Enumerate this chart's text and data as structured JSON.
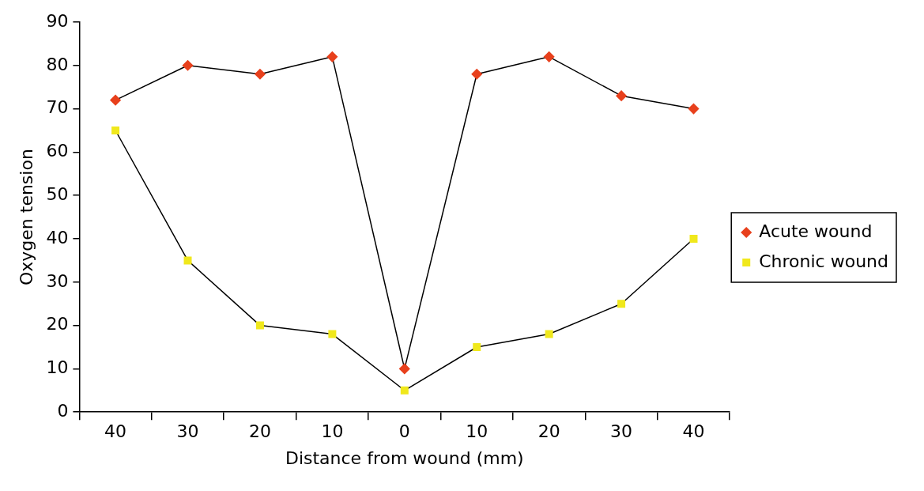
{
  "chart_data": {
    "type": "line",
    "xlabel": "Distance from wound (mm)",
    "ylabel": "Oxygen tension",
    "categories": [
      "40",
      "30",
      "20",
      "10",
      "0",
      "10",
      "20",
      "30",
      "40"
    ],
    "series": [
      {
        "name": "Acute wound",
        "color": "#e8401c",
        "marker": "diamond",
        "values": [
          72,
          80,
          78,
          82,
          10,
          78,
          82,
          73,
          70
        ]
      },
      {
        "name": "Chronic wound",
        "color": "#f0e81c",
        "marker": "square",
        "values": [
          65,
          35,
          20,
          18,
          5,
          15,
          18,
          25,
          40
        ]
      }
    ],
    "ylim": [
      0,
      90
    ],
    "yticks": [
      0,
      10,
      20,
      30,
      40,
      50,
      60,
      70,
      80,
      90
    ],
    "grid": false,
    "legend": "right"
  }
}
